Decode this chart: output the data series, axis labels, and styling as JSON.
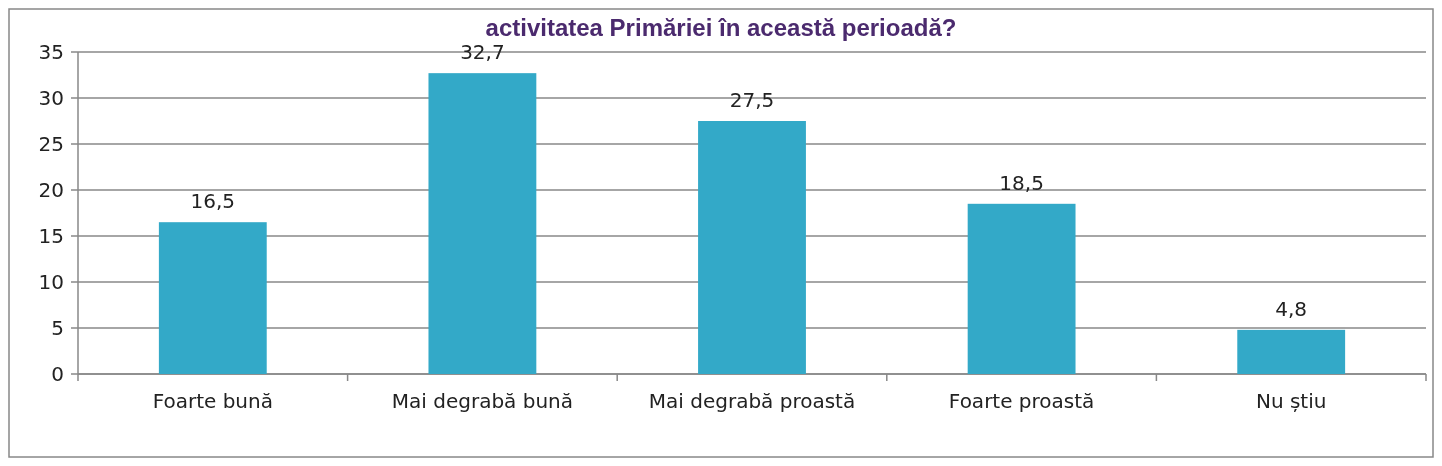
{
  "chart_data": {
    "type": "bar",
    "title": "activitatea Primăriei în această perioadă?",
    "categories": [
      "Foarte bună",
      "Mai degrabă bună",
      "Mai degrabă proastă",
      "Foarte proastă",
      "Nu știu"
    ],
    "values": [
      16.5,
      32.7,
      27.5,
      18.5,
      4.8
    ],
    "value_labels": [
      "16,5",
      "32,7",
      "27,5",
      "18,5",
      "4,8"
    ],
    "color": "#33a9c8",
    "ylim": [
      0,
      35
    ],
    "yticks": [
      0,
      5,
      10,
      15,
      20,
      25,
      30,
      35
    ],
    "grid": "y"
  }
}
